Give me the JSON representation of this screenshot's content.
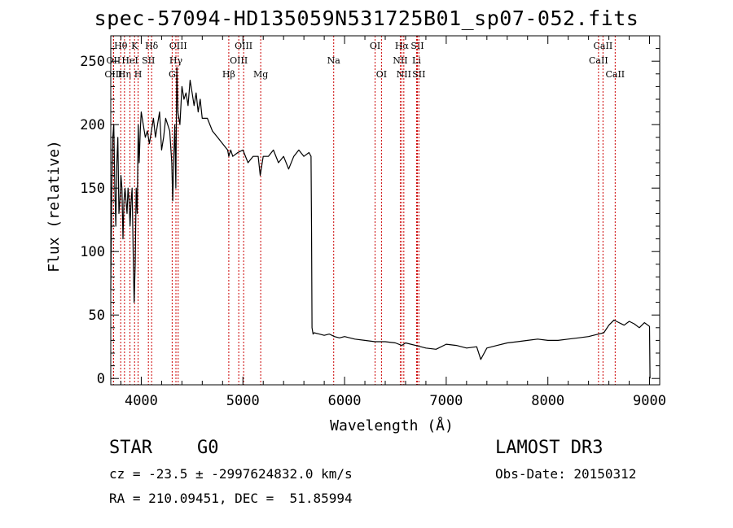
{
  "title": "spec-57094-HD135059N531725B01_sp07-052.fits",
  "info": {
    "class_label": "STAR",
    "subclass": "G0",
    "survey": "LAMOST DR3",
    "cz": "cz = -23.5 ± -2997624832.0 km/s",
    "obs_date": "Obs-Date: 20150312",
    "coords": "RA = 210.09451, DEC =  51.85994"
  },
  "chart_data": {
    "type": "line",
    "xlabel": "Wavelength (Å)",
    "ylabel": "Flux (relative)",
    "xlim": [
      3700,
      9100
    ],
    "ylim": [
      -5,
      270
    ],
    "xticks": [
      4000,
      5000,
      6000,
      7000,
      8000,
      9000
    ],
    "yticks": [
      0,
      50,
      100,
      150,
      200,
      250
    ],
    "grid": false,
    "series": [
      {
        "x": [
          3700,
          3710,
          3720,
          3730,
          3740,
          3750,
          3760,
          3770,
          3780,
          3790,
          3800,
          3810,
          3820,
          3830,
          3840,
          3850,
          3860,
          3870,
          3880,
          3890,
          3900,
          3910,
          3920,
          3930,
          3940,
          3950,
          3960,
          3970,
          3980,
          3990,
          4000,
          4020,
          4040,
          4060,
          4080,
          4100,
          4120,
          4140,
          4160,
          4180,
          4200,
          4220,
          4240,
          4260,
          4280,
          4300,
          4310,
          4320,
          4330,
          4340,
          4350,
          4360,
          4380,
          4400,
          4420,
          4440,
          4460,
          4480,
          4500,
          4520,
          4540,
          4560,
          4580,
          4600,
          4650,
          4700,
          4750,
          4800,
          4850,
          4861,
          4880,
          4900,
          4950,
          5000,
          5050,
          5100,
          5150,
          5170,
          5200,
          5250,
          5300,
          5350,
          5400,
          5450,
          5500,
          5550,
          5600,
          5650,
          5670,
          5675,
          5680,
          5690,
          5700,
          5750,
          5800,
          5850,
          5900,
          5950,
          6000,
          6100,
          6200,
          6300,
          6400,
          6500,
          6563,
          6600,
          6700,
          6800,
          6900,
          7000,
          7100,
          7200,
          7300,
          7340,
          7360,
          7400,
          7500,
          7600,
          7700,
          7800,
          7900,
          8000,
          8100,
          8200,
          8300,
          8400,
          8500,
          8550,
          8600,
          8650,
          8700,
          8750,
          8800,
          8850,
          8900,
          8950,
          9000,
          9005
        ],
        "y": [
          70,
          150,
          190,
          200,
          150,
          120,
          170,
          190,
          130,
          140,
          160,
          150,
          110,
          140,
          150,
          140,
          130,
          150,
          140,
          120,
          140,
          150,
          100,
          60,
          90,
          150,
          130,
          200,
          170,
          195,
          210,
          200,
          190,
          195,
          185,
          195,
          205,
          190,
          200,
          210,
          180,
          190,
          205,
          200,
          195,
          170,
          140,
          175,
          200,
          150,
          245,
          210,
          200,
          230,
          220,
          225,
          215,
          235,
          225,
          215,
          225,
          210,
          220,
          205,
          205,
          195,
          190,
          185,
          180,
          175,
          180,
          175,
          178,
          180,
          170,
          175,
          175,
          160,
          175,
          175,
          180,
          170,
          175,
          165,
          175,
          180,
          175,
          178,
          175,
          120,
          40,
          35,
          36,
          35,
          34,
          35,
          33,
          32,
          33,
          31,
          30,
          29,
          29,
          28,
          26,
          28,
          26,
          24,
          23,
          27,
          26,
          24,
          25,
          15,
          18,
          24,
          26,
          28,
          29,
          30,
          31,
          30,
          30,
          31,
          32,
          33,
          35,
          36,
          42,
          46,
          44,
          42,
          45,
          43,
          40,
          44,
          41,
          0
        ]
      }
    ],
    "spectral_lines": [
      {
        "label": "Hθ",
        "x": 3798,
        "row": 1
      },
      {
        "label": "OII",
        "x": 3727,
        "row": 2
      },
      {
        "label": "OIII",
        "x": 3727,
        "row": 3
      },
      {
        "label": "Hη",
        "x": 3835,
        "row": 3
      },
      {
        "label": "K",
        "x": 3934,
        "row": 1
      },
      {
        "label": "HeI",
        "x": 3889,
        "row": 2
      },
      {
        "label": "H",
        "x": 3969,
        "row": 3
      },
      {
        "label": "Hδ",
        "x": 4102,
        "row": 1
      },
      {
        "label": "SII",
        "x": 4070,
        "row": 2
      },
      {
        "label": "OIII",
        "x": 4363,
        "row": 1
      },
      {
        "label": "Hγ",
        "x": 4341,
        "row": 2
      },
      {
        "label": "G",
        "x": 4304,
        "row": 3
      },
      {
        "label": "OIII",
        "x": 5007,
        "row": 1
      },
      {
        "label": "OIII",
        "x": 4959,
        "row": 2
      },
      {
        "label": "Hβ",
        "x": 4861,
        "row": 3
      },
      {
        "label": "Mg",
        "x": 5175,
        "row": 3
      },
      {
        "label": "Na",
        "x": 5893,
        "row": 2
      },
      {
        "label": "OI",
        "x": 6300,
        "row": 1
      },
      {
        "label": "OI",
        "x": 6363,
        "row": 3
      },
      {
        "label": "Hα",
        "x": 6563,
        "row": 1
      },
      {
        "label": "NII",
        "x": 6548,
        "row": 2
      },
      {
        "label": "NII",
        "x": 6583,
        "row": 3
      },
      {
        "label": "SII",
        "x": 6716,
        "row": 1
      },
      {
        "label": "Li",
        "x": 6708,
        "row": 2
      },
      {
        "label": "SII",
        "x": 6731,
        "row": 3
      },
      {
        "label": "CaII",
        "x": 8542,
        "row": 1
      },
      {
        "label": "CaII",
        "x": 8498,
        "row": 2
      },
      {
        "label": "CaII",
        "x": 8662,
        "row": 3
      }
    ],
    "line_color": "#000000",
    "marker_color": "#cc0000"
  }
}
